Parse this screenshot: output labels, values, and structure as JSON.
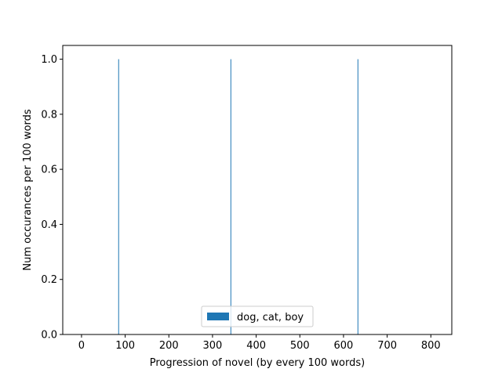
{
  "chart_data": {
    "type": "bar",
    "title": "",
    "xlabel": "Progression of novel (by every 100 words)",
    "ylabel": "Num occurances per 100 words",
    "xlim": [
      -43,
      848
    ],
    "ylim": [
      0,
      1.05
    ],
    "xticks": [
      0,
      100,
      200,
      300,
      400,
      500,
      600,
      700,
      800
    ],
    "yticks": [
      0.0,
      0.2,
      0.4,
      0.6,
      0.8,
      1.0
    ],
    "xtick_labels": [
      "0",
      "100",
      "200",
      "300",
      "400",
      "500",
      "600",
      "700",
      "800"
    ],
    "ytick_labels": [
      "0.0",
      "0.2",
      "0.4",
      "0.6",
      "0.8",
      "1.0"
    ],
    "grid": false,
    "legend_position": "lower center",
    "series": [
      {
        "name": "dog, cat, boy",
        "color": "#1f77b4",
        "x": [
          85,
          342,
          633
        ],
        "values": [
          1,
          1,
          1
        ]
      }
    ]
  }
}
